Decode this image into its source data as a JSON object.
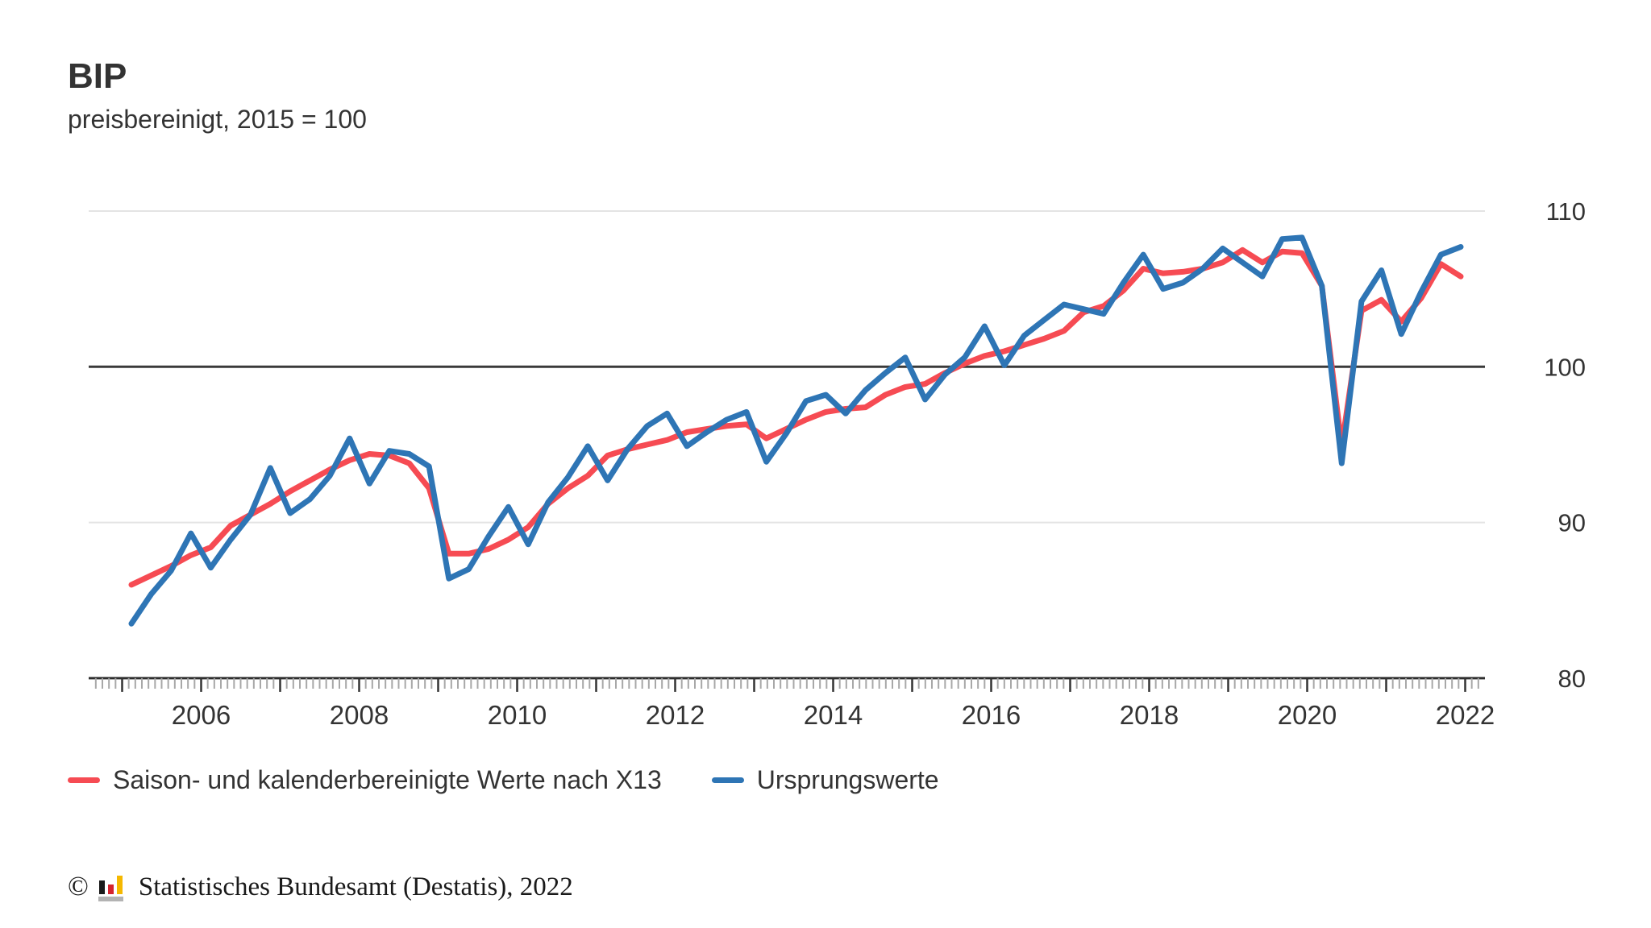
{
  "header": {
    "title": "BIP",
    "subtitle": "preisbereinigt, 2015 = 100"
  },
  "legend": [
    {
      "label": "Saison- und kalenderbereinigte Werte nach X13",
      "color": "#f64b53"
    },
    {
      "label": "Ursprungswerte",
      "color": "#2e75b5"
    }
  ],
  "footer": {
    "copyright": "©",
    "source": "Statistisches Bundesamt (Destatis), 2022"
  },
  "chart_data": {
    "type": "line",
    "title": "BIP",
    "subtitle": "preisbereinigt, 2015 = 100",
    "x_frequency": "quarterly",
    "x_start": "2005-Q1",
    "x_end": "2021-Q4",
    "x_tick_years": [
      2005,
      2006,
      2007,
      2008,
      2009,
      2010,
      2011,
      2012,
      2013,
      2014,
      2015,
      2016,
      2017,
      2018,
      2019,
      2020,
      2021,
      2022
    ],
    "x_label_years": [
      "2006",
      "2008",
      "2010",
      "2012",
      "2014",
      "2016",
      "2018",
      "2020",
      "2022"
    ],
    "ylim": [
      80,
      110
    ],
    "yticks": [
      "80",
      "90",
      "100",
      "110"
    ],
    "baseline_value": 100,
    "grid": "horizontal-light",
    "legend_position": "bottom-left",
    "colors": {
      "adjusted": "#f64b53",
      "original": "#2e75b5",
      "baseline": "#3a3a3a",
      "gridline": "#e4e4e4",
      "axis": "#2e2e2e",
      "minor_tick": "#a8a8a8"
    },
    "series": [
      {
        "name": "Saison- und kalenderbereinigte Werte nach X13",
        "color": "#f64b53",
        "values": [
          86.0,
          86.6,
          87.2,
          87.9,
          88.4,
          89.8,
          90.5,
          91.2,
          92.0,
          92.7,
          93.4,
          94.0,
          94.4,
          94.3,
          93.8,
          92.2,
          88.0,
          88.0,
          88.3,
          88.9,
          89.7,
          91.2,
          92.2,
          93.0,
          94.3,
          94.7,
          95.0,
          95.3,
          95.8,
          96.0,
          96.2,
          96.3,
          95.4,
          96.0,
          96.6,
          97.1,
          97.3,
          97.4,
          98.2,
          98.7,
          98.9,
          99.6,
          100.2,
          100.7,
          101.0,
          101.4,
          101.8,
          102.3,
          103.5,
          103.9,
          104.9,
          106.3,
          106.0,
          106.1,
          106.3,
          106.7,
          107.5,
          106.7,
          107.4,
          107.3,
          105.2,
          94.9,
          103.6,
          104.3,
          102.9,
          104.4,
          106.6,
          105.8
        ]
      },
      {
        "name": "Ursprungswerte",
        "color": "#2e75b5",
        "values": [
          83.5,
          85.4,
          86.9,
          89.3,
          87.1,
          88.9,
          90.5,
          93.5,
          90.6,
          91.5,
          93.0,
          95.4,
          92.5,
          94.6,
          94.4,
          93.6,
          86.4,
          87.0,
          89.1,
          91.0,
          88.6,
          91.3,
          92.9,
          94.9,
          92.7,
          94.7,
          96.2,
          97.0,
          94.9,
          95.8,
          96.6,
          97.1,
          93.9,
          95.7,
          97.8,
          98.2,
          97.0,
          98.5,
          99.6,
          100.6,
          97.9,
          99.5,
          100.6,
          102.6,
          100.1,
          102.0,
          103.0,
          104.0,
          103.7,
          103.4,
          105.4,
          107.2,
          105.0,
          105.4,
          106.3,
          107.6,
          106.7,
          105.8,
          108.2,
          108.3,
          105.2,
          93.8,
          104.2,
          106.2,
          102.1,
          104.8,
          107.2,
          107.7
        ]
      }
    ]
  },
  "logo": {
    "name": "destatis-bar-logo",
    "bar_colors": [
      "#1a1a1a",
      "#d5232e",
      "#f5b800"
    ],
    "base_color": "#b3b3b3"
  }
}
